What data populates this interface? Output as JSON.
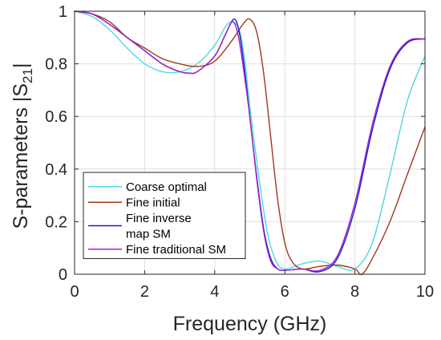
{
  "chart_data": {
    "type": "line",
    "xlabel": "Frequency (GHz)",
    "ylabel_main": "S-parameters |S",
    "ylabel_sub": "21",
    "ylabel_end": "|",
    "xlim": [
      0,
      10
    ],
    "ylim": [
      0,
      1
    ],
    "xticks": [
      "0",
      "2",
      "4",
      "6",
      "8",
      "10"
    ],
    "yticks": [
      "0",
      "0.2",
      "0.4",
      "0.6",
      "0.8",
      "1"
    ],
    "grid": true,
    "legend_position": "bottom-left",
    "series": [
      {
        "name": "Coarse optimal",
        "color": "#4fd8de",
        "x": [
          0,
          0.5,
          1,
          1.5,
          2,
          2.5,
          3,
          3.5,
          4,
          4.3,
          4.5,
          4.7,
          4.85,
          5,
          5.25,
          5.5,
          5.75,
          6,
          6.5,
          7,
          7.5,
          8,
          8.5,
          9,
          9.5,
          10
        ],
        "y": [
          1,
          0.98,
          0.93,
          0.86,
          0.8,
          0.77,
          0.77,
          0.8,
          0.87,
          0.94,
          0.96,
          0.93,
          0.82,
          0.64,
          0.38,
          0.16,
          0.05,
          0.02,
          0.04,
          0.05,
          0.03,
          0.02,
          0.12,
          0.38,
          0.66,
          0.83
        ]
      },
      {
        "name": "Fine initial",
        "color": "#a0381a",
        "x": [
          0,
          0.5,
          1,
          1.5,
          2,
          2.5,
          3,
          3.5,
          4,
          4.5,
          4.8,
          5,
          5.2,
          5.4,
          5.6,
          5.8,
          6,
          6.2,
          6.5,
          7,
          7.5,
          8,
          8.2,
          8.5,
          9,
          9.5,
          10
        ],
        "y": [
          1,
          0.99,
          0.96,
          0.9,
          0.86,
          0.82,
          0.8,
          0.79,
          0.81,
          0.89,
          0.95,
          0.97,
          0.92,
          0.76,
          0.52,
          0.28,
          0.12,
          0.05,
          0.02,
          0.03,
          0.035,
          0.02,
          0.0,
          0.06,
          0.2,
          0.38,
          0.56
        ]
      },
      {
        "name": "Fine inverse map SM",
        "color": "#1a1ad6",
        "x": [
          0,
          0.5,
          1,
          1.5,
          2,
          2.5,
          3,
          3.25,
          3.5,
          4,
          4.3,
          4.55,
          4.7,
          4.85,
          5,
          5.2,
          5.4,
          5.6,
          5.8,
          6,
          6.5,
          7,
          7.5,
          8,
          8.5,
          9,
          9.5,
          10
        ],
        "y": [
          1,
          0.99,
          0.95,
          0.9,
          0.85,
          0.8,
          0.77,
          0.765,
          0.77,
          0.83,
          0.91,
          0.97,
          0.92,
          0.78,
          0.6,
          0.37,
          0.17,
          0.06,
          0.02,
          0.015,
          0.02,
          0.01,
          0.06,
          0.25,
          0.55,
          0.78,
          0.88,
          0.895
        ]
      },
      {
        "name": "Fine traditional SM",
        "color": "#a020c8",
        "x": [
          0,
          0.5,
          1,
          1.5,
          2,
          2.5,
          3,
          3.25,
          3.5,
          4,
          4.3,
          4.5,
          4.65,
          4.8,
          5,
          5.2,
          5.4,
          5.6,
          5.8,
          6,
          6.5,
          7,
          7.5,
          8,
          8.5,
          9,
          9.5,
          10
        ],
        "y": [
          1,
          0.99,
          0.95,
          0.9,
          0.85,
          0.8,
          0.77,
          0.765,
          0.77,
          0.83,
          0.91,
          0.96,
          0.92,
          0.8,
          0.6,
          0.36,
          0.16,
          0.05,
          0.02,
          0.015,
          0.02,
          0.015,
          0.07,
          0.27,
          0.57,
          0.79,
          0.885,
          0.895
        ]
      }
    ],
    "legend": [
      {
        "lines": [
          "Coarse optimal"
        ],
        "color": "#4fd8de"
      },
      {
        "lines": [
          "Fine initial"
        ],
        "color": "#a0381a"
      },
      {
        "lines": [
          "Fine inverse",
          "map SM"
        ],
        "color": "#1a1ad6"
      },
      {
        "lines": [
          "Fine traditional SM"
        ],
        "color": "#a020c8"
      }
    ]
  }
}
